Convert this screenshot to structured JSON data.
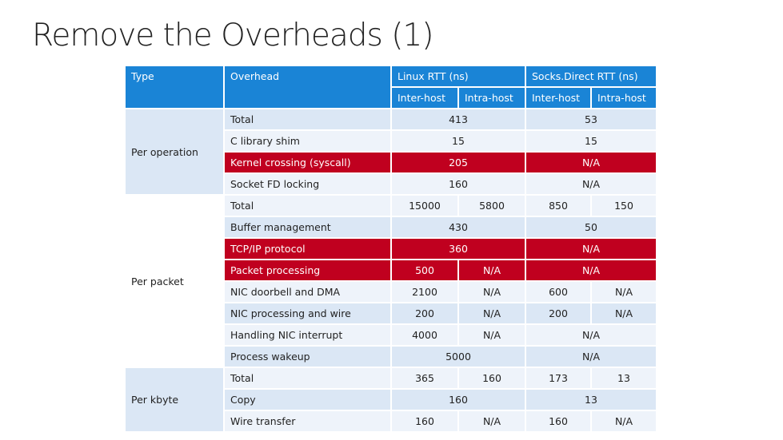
{
  "title": "Remove the Overheads (1)",
  "headers": {
    "type": "Type",
    "overhead": "Overhead",
    "linux": "Linux RTT (ns)",
    "socks": "Socks.Direct RTT (ns)",
    "inter": "Inter-host",
    "intra": "Intra-host"
  },
  "sections": {
    "per_operation": "Per operation",
    "per_packet": "Per packet",
    "per_kbyte": "Per kbyte"
  },
  "rows": [
    {
      "label": "Total",
      "linux": "413",
      "socks": "53"
    },
    {
      "label": "C library shim",
      "linux": "15",
      "socks": "15"
    },
    {
      "label": "Kernel crossing (syscall)",
      "linux": "205",
      "socks": "N/A"
    },
    {
      "label": "Socket FD locking",
      "linux": "160",
      "socks": "N/A"
    },
    {
      "label": "Total",
      "linux_inter": "15000",
      "linux_intra": "5800",
      "socks_inter": "850",
      "socks_intra": "150"
    },
    {
      "label": "Buffer management",
      "linux": "430",
      "socks": "50"
    },
    {
      "label": "TCP/IP protocol",
      "linux": "360",
      "socks": "N/A"
    },
    {
      "label": "Packet processing",
      "linux_inter": "500",
      "linux_intra": "N/A",
      "socks": "N/A"
    },
    {
      "label": "NIC doorbell and DMA",
      "linux_inter": "2100",
      "linux_intra": "N/A",
      "socks_inter": "600",
      "socks_intra": "N/A"
    },
    {
      "label": "NIC processing and wire",
      "linux_inter": "200",
      "linux_intra": "N/A",
      "socks_inter": "200",
      "socks_intra": "N/A"
    },
    {
      "label": "Handling NIC interrupt",
      "linux_inter": "4000",
      "linux_intra": "N/A",
      "socks": "N/A"
    },
    {
      "label": "Process wakeup",
      "linux": "5000",
      "socks": "N/A"
    },
    {
      "label": "Total",
      "linux_inter": "365",
      "linux_intra": "160",
      "socks_inter": "173",
      "socks_intra": "13"
    },
    {
      "label": "Copy",
      "linux": "160",
      "socks": "13"
    },
    {
      "label": "Wire transfer",
      "linux_inter": "160",
      "linux_intra": "N/A",
      "socks_inter": "160",
      "socks_intra": "N/A"
    }
  ],
  "colors": {
    "header_blue": "#1a84d6",
    "light_row": "#dbe7f5",
    "highlight_red": "#c0001f"
  }
}
